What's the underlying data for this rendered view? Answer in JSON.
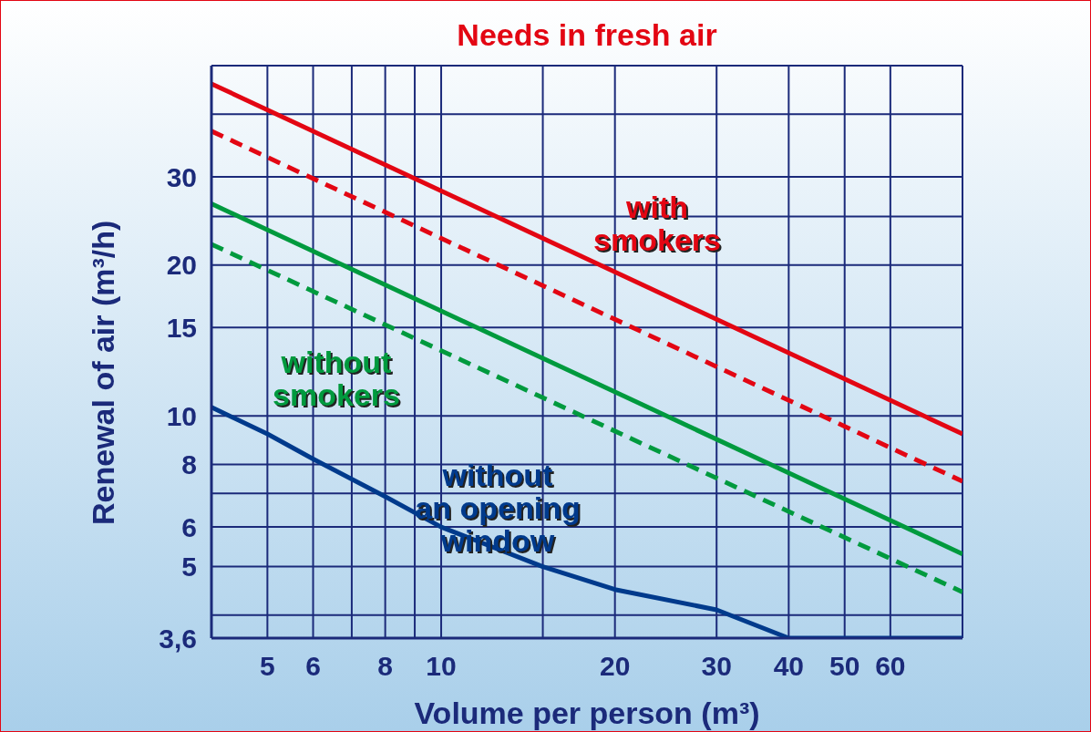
{
  "chart_data": {
    "type": "line",
    "title": "Needs in fresh air",
    "xlabel": "Volume per person (m³)",
    "ylabel": "Renewal of air (m³/h)",
    "log": "xy",
    "grid": true,
    "legend": false,
    "marker": "none",
    "xlim": [
      4,
      80
    ],
    "xticks": [
      5,
      6,
      {
        "value": 7,
        "label": null
      },
      8,
      {
        "value": 9,
        "label": null
      },
      10,
      {
        "value": 15,
        "label": null
      },
      20,
      30,
      40,
      50,
      60
    ],
    "ylim": [
      3.6,
      50
    ],
    "yticks": [
      {
        "value": 3.6,
        "label": "3,6"
      },
      {
        "value": 4,
        "label": null
      },
      5,
      6,
      {
        "value": 7,
        "label": null
      },
      8,
      10,
      15,
      20,
      {
        "value": 25,
        "label": null
      },
      30,
      {
        "value": 40,
        "label": null
      },
      {
        "value": 50,
        "label": null
      }
    ],
    "series": [
      {
        "name": "with\nsmokers",
        "color": "#e30613",
        "line_style": "solid",
        "x": [
          4,
          80
        ],
        "values": [
          46,
          9.2
        ]
      },
      {
        "color": "#e30613",
        "line_style": "dashed",
        "x": [
          4,
          80
        ],
        "values": [
          37,
          7.4
        ]
      },
      {
        "name": "without\nsmokers",
        "color": "#009a3e",
        "line_style": "solid",
        "x": [
          4,
          80
        ],
        "values": [
          26.5,
          5.3
        ]
      },
      {
        "color": "#009a3e",
        "line_style": "dashed",
        "x": [
          4,
          80
        ],
        "values": [
          22,
          4.45
        ]
      },
      {
        "name": "without\nan opening\nwindow",
        "color": "#003a8c",
        "line_style": "solid",
        "x": [
          4,
          5,
          6,
          8,
          10,
          15,
          20,
          30,
          40,
          80
        ],
        "values": [
          10.4,
          9.2,
          8.2,
          6.9,
          6.0,
          5.0,
          4.5,
          4.1,
          3.6,
          3.6
        ]
      }
    ]
  }
}
